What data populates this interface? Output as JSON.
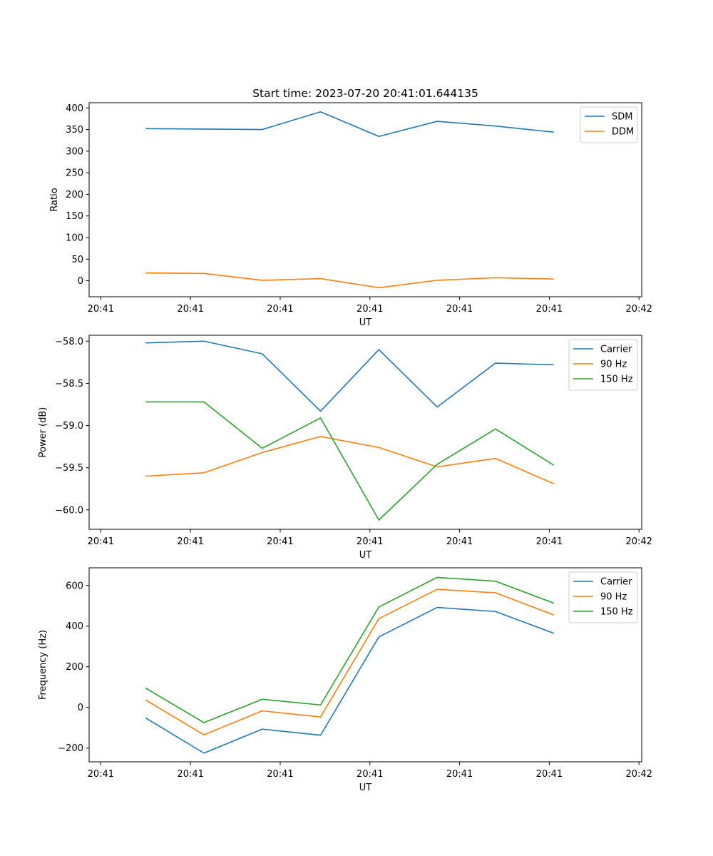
{
  "title": "Start time: 2023-07-20 20:41:01.644135",
  "chart_data": [
    {
      "type": "line",
      "title": "Start time: 2023-07-20 20:41:01.644135",
      "xlabel": "UT",
      "ylabel": "Ratio",
      "x": [
        0.5,
        1.15,
        1.8,
        2.45,
        3.1,
        3.75,
        4.4,
        5.05
      ],
      "xticks": [
        0,
        1,
        2,
        3,
        4,
        5,
        6
      ],
      "xtick_labels": [
        "20:41",
        "20:41",
        "20:41",
        "20:41",
        "20:41",
        "20:41",
        "20:42"
      ],
      "xlim": [
        -0.13,
        6.03
      ],
      "ylim": [
        -37,
        412
      ],
      "yticks": [
        0,
        50,
        100,
        150,
        200,
        250,
        300,
        350,
        400
      ],
      "ytick_labels": [
        "0",
        "50",
        "100",
        "150",
        "200",
        "250",
        "300",
        "350",
        "400"
      ],
      "legend_position": "top-right",
      "series": [
        {
          "name": "SDM",
          "color": "#1f77b4",
          "values": [
            352,
            351,
            350,
            391,
            334,
            369,
            358,
            344
          ]
        },
        {
          "name": "DDM",
          "color": "#ff7f0e",
          "values": [
            18,
            17,
            1,
            5,
            -16,
            1,
            7,
            4
          ]
        }
      ]
    },
    {
      "type": "line",
      "title": "",
      "xlabel": "UT",
      "ylabel": "Power (dB)",
      "x": [
        0.5,
        1.15,
        1.8,
        2.45,
        3.1,
        3.75,
        4.4,
        5.05
      ],
      "xticks": [
        0,
        1,
        2,
        3,
        4,
        5,
        6
      ],
      "xtick_labels": [
        "20:41",
        "20:41",
        "20:41",
        "20:41",
        "20:41",
        "20:41",
        "20:42"
      ],
      "xlim": [
        -0.13,
        6.03
      ],
      "ylim": [
        -60.23,
        -57.93
      ],
      "yticks": [
        -60.0,
        -59.5,
        -59.0,
        -58.5,
        -58.0
      ],
      "ytick_labels": [
        "−60.0",
        "−59.5",
        "−59.0",
        "−58.5",
        "−58.0"
      ],
      "legend_position": "top-right",
      "series": [
        {
          "name": "Carrier",
          "color": "#1f77b4",
          "values": [
            -58.02,
            -58.0,
            -58.15,
            -58.83,
            -58.1,
            -58.78,
            -58.26,
            -58.28
          ]
        },
        {
          "name": "90 Hz",
          "color": "#ff7f0e",
          "values": [
            -59.6,
            -59.56,
            -59.32,
            -59.13,
            -59.26,
            -59.49,
            -59.39,
            -59.69
          ]
        },
        {
          "name": "150 Hz",
          "color": "#2ca02c",
          "values": [
            -58.72,
            -58.72,
            -59.27,
            -58.91,
            -60.12,
            -59.46,
            -59.04,
            -59.47
          ]
        }
      ]
    },
    {
      "type": "line",
      "title": "",
      "xlabel": "UT",
      "ylabel": "Frequency (Hz)",
      "x": [
        0.5,
        1.15,
        1.8,
        2.45,
        3.1,
        3.75,
        4.4,
        5.05
      ],
      "xticks": [
        0,
        1,
        2,
        3,
        4,
        5,
        6
      ],
      "xtick_labels": [
        "20:41",
        "20:41",
        "20:41",
        "20:41",
        "20:41",
        "20:41",
        "20:42"
      ],
      "xlim": [
        -0.13,
        6.03
      ],
      "ylim": [
        -268,
        687
      ],
      "yticks": [
        -200,
        0,
        200,
        400,
        600
      ],
      "ytick_labels": [
        "−200",
        "0",
        "200",
        "400",
        "600"
      ],
      "legend_position": "top-right",
      "series": [
        {
          "name": "Carrier",
          "color": "#1f77b4",
          "values": [
            -52,
            -225,
            -107,
            -137,
            347,
            492,
            472,
            365
          ]
        },
        {
          "name": "90 Hz",
          "color": "#ff7f0e",
          "values": [
            37,
            -135,
            -17,
            -47,
            437,
            581,
            564,
            455
          ]
        },
        {
          "name": "150 Hz",
          "color": "#2ca02c",
          "values": [
            95,
            -75,
            40,
            12,
            494,
            640,
            621,
            513
          ]
        }
      ]
    }
  ]
}
